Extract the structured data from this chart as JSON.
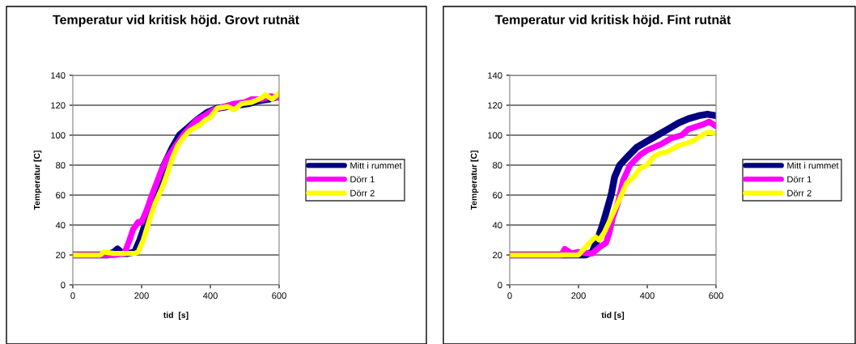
{
  "chart_data": [
    {
      "type": "line",
      "title": "Temperatur vid kritisk höjd. Grovt rutnät",
      "xlabel": "tid  [s]",
      "ylabel": "Temperatur [C]",
      "xlim": [
        0,
        600
      ],
      "ylim": [
        0,
        140
      ],
      "xticks": [
        0,
        200,
        400,
        600
      ],
      "yticks": [
        0,
        20,
        40,
        60,
        80,
        100,
        120,
        140
      ],
      "grid": "y",
      "legend": "right",
      "marker": "none",
      "line_style": "solid",
      "series": [
        {
          "name": "Mitt i rummet",
          "color": "#000080",
          "x": [
            0,
            100,
            120,
            130,
            145,
            160,
            180,
            195,
            210,
            235,
            265,
            290,
            310,
            340,
            360,
            390,
            420,
            450,
            480,
            510,
            540,
            570,
            600
          ],
          "values": [
            20,
            20,
            22,
            24,
            21,
            21,
            22,
            30,
            40,
            60,
            80,
            92,
            100,
            106,
            110,
            115,
            118,
            119,
            120,
            121,
            123,
            124,
            126
          ]
        },
        {
          "name": "Dörr 1",
          "color": "#ff00ff",
          "x": [
            0,
            100,
            120,
            150,
            165,
            175,
            190,
            200,
            215,
            230,
            255,
            275,
            290,
            320,
            340,
            360,
            390,
            410,
            440,
            470,
            500,
            520,
            550,
            575,
            600
          ],
          "values": [
            20,
            20,
            20,
            21,
            30,
            37,
            42,
            42,
            50,
            60,
            75,
            85,
            90,
            100,
            105,
            110,
            114,
            117,
            119,
            121,
            122,
            124,
            124,
            126,
            125
          ]
        },
        {
          "name": "Dörr 2",
          "color": "#ffff00",
          "x": [
            0,
            80,
            90,
            120,
            180,
            190,
            205,
            225,
            240,
            260,
            270,
            290,
            305,
            320,
            340,
            370,
            385,
            400,
            420,
            450,
            470,
            490,
            520,
            550,
            560,
            580,
            600
          ],
          "values": [
            20,
            20,
            22,
            21,
            21,
            22,
            30,
            45,
            55,
            65,
            71,
            85,
            93,
            98,
            103,
            107,
            110,
            112,
            118,
            119,
            117,
            121,
            122,
            125,
            127,
            124,
            128
          ]
        }
      ]
    },
    {
      "type": "line",
      "title": "Temperatur vid kritisk höjd. Fint rutnät",
      "xlabel": "tid [s]",
      "ylabel": "Temperatur [C]",
      "xlim": [
        0,
        600
      ],
      "ylim": [
        0,
        140
      ],
      "xticks": [
        0,
        200,
        400,
        600
      ],
      "yticks": [
        0,
        20,
        40,
        60,
        80,
        100,
        120,
        140
      ],
      "grid": "y",
      "legend": "right",
      "marker": "none",
      "line_style": "solid",
      "series": [
        {
          "name": "Mitt i rummet",
          "color": "#000080",
          "x": [
            0,
            220,
            240,
            255,
            270,
            280,
            295,
            305,
            320,
            340,
            370,
            400,
            430,
            460,
            490,
            520,
            550,
            575,
            600
          ],
          "values": [
            20,
            20,
            22,
            30,
            40,
            48,
            60,
            72,
            80,
            85,
            92,
            96,
            100,
            104,
            108,
            111,
            113,
            114,
            113
          ]
        },
        {
          "name": "Dörr 1",
          "color": "#ff00ff",
          "x": [
            0,
            150,
            160,
            180,
            200,
            230,
            240,
            260,
            280,
            290,
            300,
            315,
            330,
            350,
            380,
            400,
            440,
            470,
            500,
            520,
            560,
            580,
            600
          ],
          "values": [
            20,
            20,
            24,
            21,
            22,
            21,
            21,
            25,
            28,
            35,
            45,
            55,
            70,
            80,
            87,
            90,
            94,
            98,
            100,
            104,
            107,
            109,
            106
          ]
        },
        {
          "name": "Dörr 2",
          "color": "#ffff00",
          "x": [
            0,
            200,
            220,
            240,
            250,
            260,
            275,
            295,
            315,
            340,
            360,
            380,
            400,
            420,
            440,
            460,
            490,
            520,
            540,
            560,
            575,
            600
          ],
          "values": [
            20,
            20,
            25,
            30,
            32,
            30,
            35,
            45,
            55,
            68,
            72,
            78,
            80,
            86,
            88,
            89,
            93,
            95,
            97,
            100,
            102,
            101
          ]
        }
      ]
    }
  ]
}
